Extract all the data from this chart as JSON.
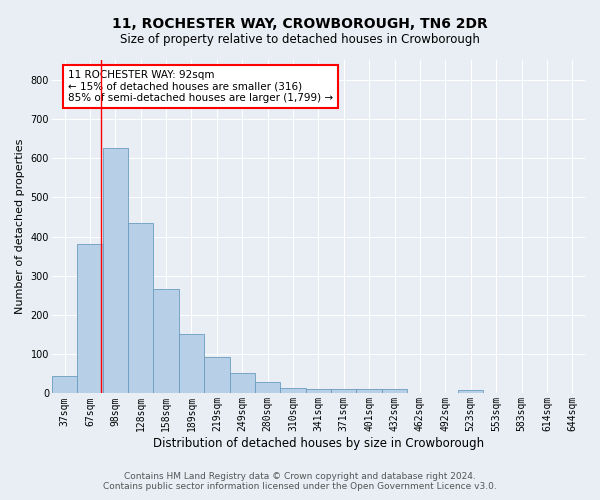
{
  "title": "11, ROCHESTER WAY, CROWBOROUGH, TN6 2DR",
  "subtitle": "Size of property relative to detached houses in Crowborough",
  "xlabel": "Distribution of detached houses by size in Crowborough",
  "ylabel": "Number of detached properties",
  "categories": [
    "37sqm",
    "67sqm",
    "98sqm",
    "128sqm",
    "158sqm",
    "189sqm",
    "219sqm",
    "249sqm",
    "280sqm",
    "310sqm",
    "341sqm",
    "371sqm",
    "401sqm",
    "432sqm",
    "462sqm",
    "492sqm",
    "523sqm",
    "553sqm",
    "583sqm",
    "614sqm",
    "644sqm"
  ],
  "values": [
    45,
    380,
    625,
    435,
    265,
    152,
    93,
    52,
    28,
    15,
    11,
    10,
    10,
    12,
    0,
    0,
    8,
    0,
    0,
    0,
    0
  ],
  "bar_color": "#b8cfe8",
  "bar_edge_color": "#6a9cc0",
  "property_line_x": 1.42,
  "annotation_text": "11 ROCHESTER WAY: 92sqm\n← 15% of detached houses are smaller (316)\n85% of semi-detached houses are larger (1,799) →",
  "annotation_box_color": "white",
  "annotation_box_edge_color": "red",
  "vline_color": "red",
  "ylim": [
    0,
    850
  ],
  "yticks": [
    0,
    100,
    200,
    300,
    400,
    500,
    600,
    700,
    800
  ],
  "background_color": "#e8eef4",
  "plot_bg_color": "#e8eef4",
  "grid_color": "white",
  "footer_line1": "Contains HM Land Registry data © Crown copyright and database right 2024.",
  "footer_line2": "Contains public sector information licensed under the Open Government Licence v3.0.",
  "title_fontsize": 10,
  "subtitle_fontsize": 8.5,
  "xlabel_fontsize": 8.5,
  "ylabel_fontsize": 8,
  "tick_fontsize": 7,
  "footer_fontsize": 6.5,
  "annot_fontsize": 7.5
}
